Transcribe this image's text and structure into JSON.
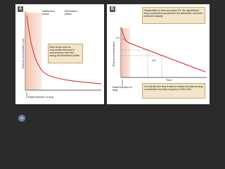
{
  "slide_number": "35",
  "panels": [
    {
      "label": "A",
      "phases": [
        "Distribution phase",
        "Elimination phase"
      ],
      "y_axis": "Plasma concentration (Cp)",
      "note": "Most drugs show an exponential decrease in concentration with time during the elimination phase.",
      "x_note": "Rapid injection of drug"
    },
    {
      "label": "B",
      "callout": "Extrapolation to time zero gives C0, the hypothetical drug concentration predicted if the distribution had been achieved instantly.",
      "y_axis": "Plasma concentration",
      "y_label": "C0",
      "half_life": "t1/2",
      "x_axis": "Time",
      "x_note": "Rapid injection of drug",
      "note": "The half-life (the time it takes to reduce the plasma drug concentration by half) is equal to 0.693 Vd/CL."
    }
  ]
}
